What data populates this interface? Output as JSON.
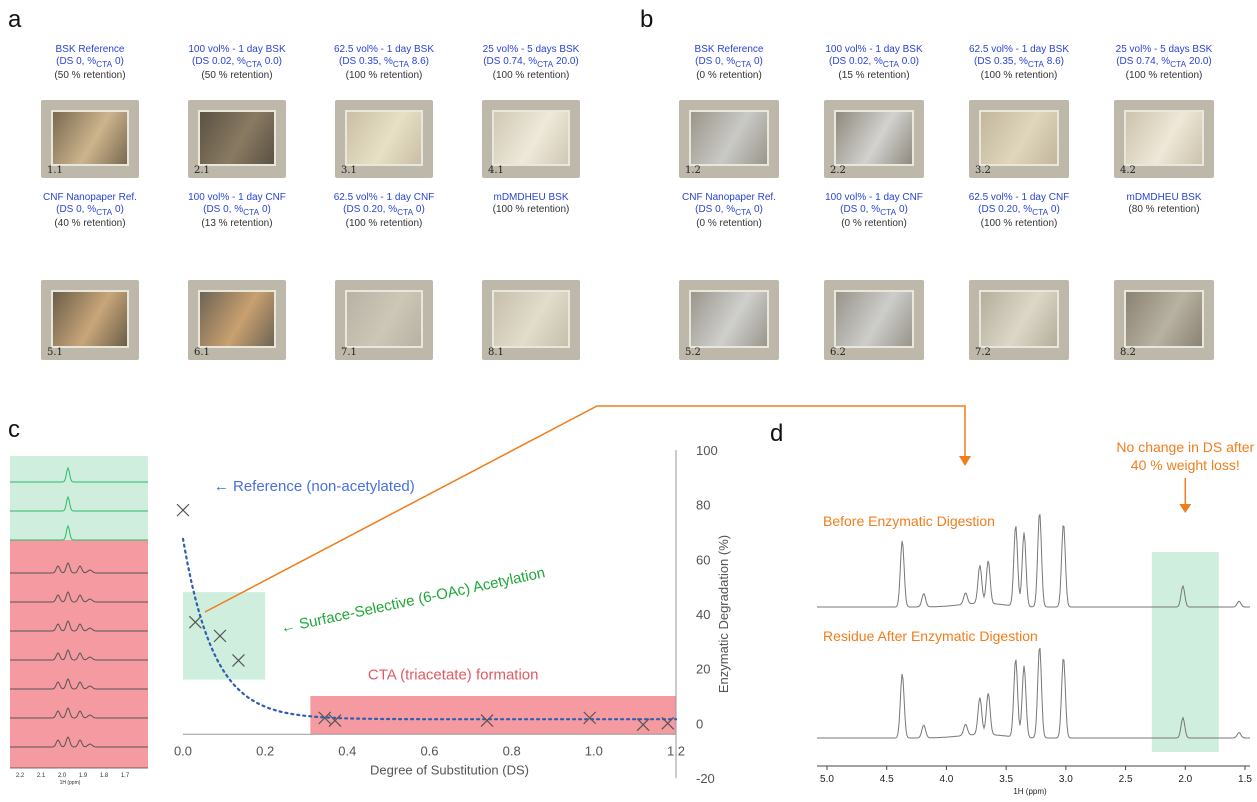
{
  "panels": {
    "a": "a",
    "b": "b",
    "c": "c",
    "d": "d"
  },
  "panel_a": [
    {
      "title": "BSK Reference",
      "ds_html": "(DS 0, %<sub>CTA</sub> 0)",
      "retention": "(50 % retention)",
      "num": "1.1",
      "color": "#7a6a52",
      "inner": "#cdb48c"
    },
    {
      "title": "100 vol% - 1 day BSK",
      "ds_html": "(DS 0.02, %<sub>CTA</sub> 0.0)",
      "retention": "(50 % retention)",
      "num": "2.1",
      "color": "#5a5244",
      "inner": "#8a7a62"
    },
    {
      "title": "62.5 vol% - 1 day BSK",
      "ds_html": "(DS 0.35, %<sub>CTA</sub> 8.6)",
      "retention": "(100 % retention)",
      "num": "3.1",
      "color": "#c8bfa6",
      "inner": "#e8e0c4"
    },
    {
      "title": "25 vol% - 5 days BSK",
      "ds_html": "(DS 0.74, %<sub>CTA</sub> 20.0)",
      "retention": "(100 % retention)",
      "num": "4.1",
      "color": "#cfc8b4",
      "inner": "#efe9da"
    },
    {
      "title": "CNF Nanopaper Ref.",
      "ds_html": "(DS 0, %<sub>CTA</sub> 0)",
      "retention": "(40 % retention)",
      "num": "5.1",
      "color": "#6b5e48",
      "inner": "#c9a67a"
    },
    {
      "title": "100 vol% - 1 day CNF",
      "ds_html": "(DS 0, %<sub>CTA</sub> 0)",
      "retention": "(13 % retention)",
      "num": "6.1",
      "color": "#6e6454",
      "inner": "#c9a070"
    },
    {
      "title": "62.5 vol% - 1 day CNF",
      "ds_html": "(DS 0.20, %<sub>CTA</sub> 0)",
      "retention": "(100 % retention)",
      "num": "7.1",
      "color": "#b7b2a4",
      "inner": "#ccc7b6"
    },
    {
      "title": "mDMDHEU BSK",
      "ds_html": "",
      "retention": "(100 % retention)",
      "num": "8.1",
      "color": "#c6bfac",
      "inner": "#e2dccb"
    }
  ],
  "panel_b": [
    {
      "title": "BSK Reference",
      "ds_html": "(DS 0, %<sub>CTA</sub> 0)",
      "retention": "(0 % retention)",
      "num": "1.2",
      "color": "#9b968a",
      "inner": "#c9c9c6"
    },
    {
      "title": "100 vol% - 1 day BSK",
      "ds_html": "(DS 0.02, %<sub>CTA</sub> 0.0)",
      "retention": "(15 % retention)",
      "num": "2.2",
      "color": "#8f8a7e",
      "inner": "#d3d2d0"
    },
    {
      "title": "62.5 vol% - 1 day BSK",
      "ds_html": "(DS 0.35, %<sub>CTA</sub> 8.6)",
      "retention": "(100 % retention)",
      "num": "3.2",
      "color": "#c2b79c",
      "inner": "#e0d6bc"
    },
    {
      "title": "25 vol% - 5 days BSK",
      "ds_html": "(DS 0.74, %<sub>CTA</sub> 20.0)",
      "retention": "(100 % retention)",
      "num": "4.2",
      "color": "#cac2ac",
      "inner": "#efe8d8"
    },
    {
      "title": "CNF Nanopaper Ref.",
      "ds_html": "(DS 0, %<sub>CTA</sub> 0)",
      "retention": "(0 % retention)",
      "num": "5.2",
      "color": "#9a968c",
      "inner": "#cfcfcd"
    },
    {
      "title": "100 vol% - 1 day CNF",
      "ds_html": "(DS 0, %<sub>CTA</sub> 0)",
      "retention": "(0 % retention)",
      "num": "6.2",
      "color": "#98948a",
      "inner": "#cdcdcb"
    },
    {
      "title": "62.5 vol% - 1 day CNF",
      "ds_html": "(DS 0.20, %<sub>CTA</sub> 0)",
      "retention": "(100 % retention)",
      "num": "7.2",
      "color": "#b4ae9c",
      "inner": "#dcd7c7"
    },
    {
      "title": "mDMDHEU BSK",
      "ds_html": "",
      "retention": "(80 % retention)",
      "num": "8.2",
      "color": "#8a8272",
      "inner": "#b8b2a2"
    }
  ],
  "nmr_small": {
    "tick_labels": [
      "2.2",
      "2.1",
      "2.0",
      "1.9",
      "1.8",
      "1.7"
    ],
    "xlabel": "1H (ppm)",
    "green_count": 3,
    "red_count": 7
  },
  "annotations": {
    "reference": "← Reference (non-acetylated)",
    "surface": "← Surface-Selective (6-OAc) Acetylation",
    "cta": "CTA (triacetate) formation"
  },
  "colors": {
    "blue": "#4a6fe0",
    "green": "#1fa83a",
    "red": "#e05a62",
    "orange": "#f07d1c",
    "green_box": "#cfeedd",
    "red_box": "#f59aa0"
  },
  "chart_data": {
    "type": "scatter",
    "xlabel": "Degree of Substitution (DS)",
    "ylabel": "Enzymatic Degradation (%)",
    "xlim": [
      0.0,
      1.2
    ],
    "ylim": [
      -20,
      100
    ],
    "x_ticks": [
      "0.0",
      "0.2",
      "0.4",
      "0.6",
      "0.8",
      "1.0",
      "1.2"
    ],
    "y_ticks": [
      "100",
      "80",
      "60",
      "40",
      "20",
      "0",
      "-20"
    ],
    "points": [
      {
        "x": 0.0,
        "y": 78
      },
      {
        "x": 0.03,
        "y": 37
      },
      {
        "x": 0.09,
        "y": 32
      },
      {
        "x": 0.135,
        "y": 23
      },
      {
        "x": 0.345,
        "y": 2
      },
      {
        "x": 0.37,
        "y": 1
      },
      {
        "x": 0.74,
        "y": 1
      },
      {
        "x": 0.99,
        "y": 2
      },
      {
        "x": 1.12,
        "y": -0.5
      },
      {
        "x": 1.18,
        "y": 0
      }
    ],
    "fit_curve": true
  },
  "panel_d": {
    "title_green": "No change in DS after 40 % weight loss!",
    "before": "Before Enzymatic Digestion",
    "after": "Residue After Enzymatic Digestion",
    "x_ticks": [
      "5.0",
      "4.5",
      "4.0",
      "3.5",
      "3.0",
      "2.5",
      "2.0",
      "1.5"
    ],
    "xlabel": "1H (ppm)"
  }
}
